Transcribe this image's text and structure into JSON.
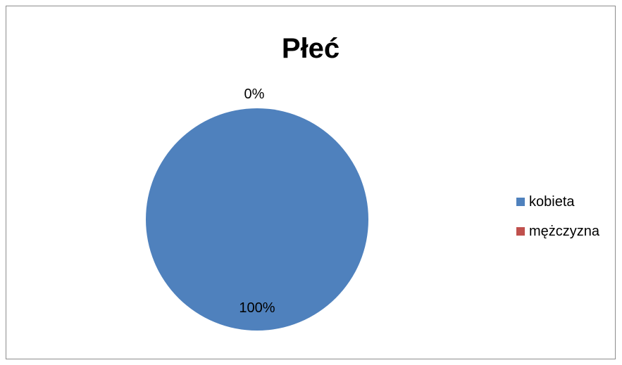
{
  "chart_data": {
    "type": "pie",
    "title": "Płeć",
    "categories": [
      "kobieta",
      "mężczyzna"
    ],
    "values": [
      100,
      0
    ],
    "data_labels": [
      "100%",
      "0%"
    ],
    "colors": [
      "#4f81bd",
      "#c0504d"
    ],
    "legend_position": "right",
    "grid": false
  }
}
